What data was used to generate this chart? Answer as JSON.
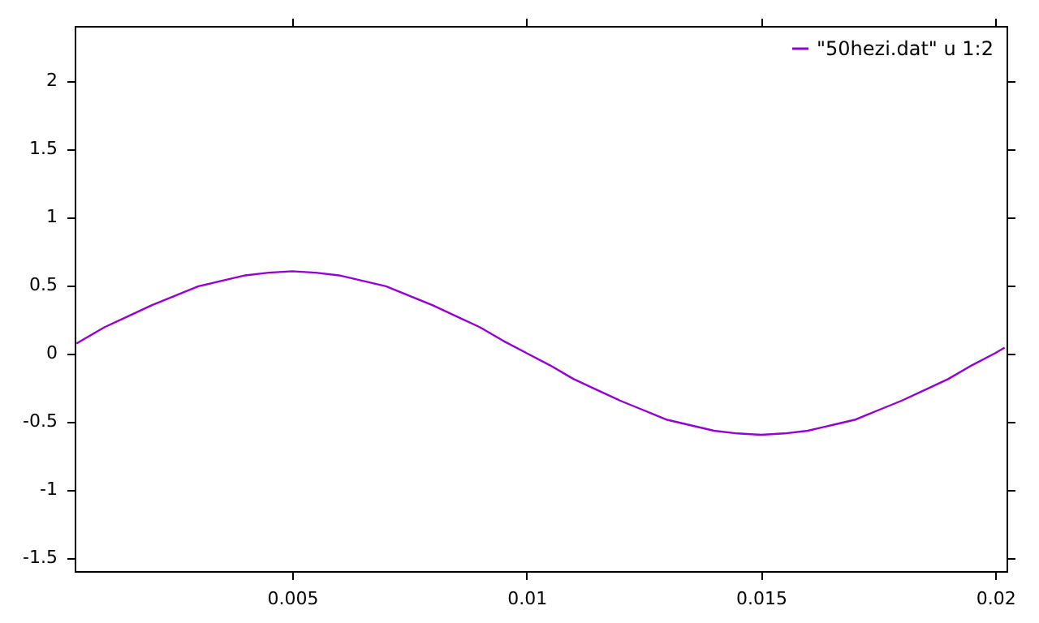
{
  "chart_data": {
    "type": "line",
    "x": [
      0.0004,
      0.0005,
      0.001,
      0.0015,
      0.002,
      0.0025,
      0.003,
      0.0035,
      0.004,
      0.0045,
      0.005,
      0.0055,
      0.006,
      0.0065,
      0.007,
      0.0075,
      0.008,
      0.0085,
      0.009,
      0.0095,
      0.01,
      0.0105,
      0.011,
      0.0115,
      0.012,
      0.0125,
      0.013,
      0.0135,
      0.014,
      0.0145,
      0.015,
      0.0155,
      0.016,
      0.0165,
      0.017,
      0.0175,
      0.018,
      0.0185,
      0.019,
      0.0195,
      0.02,
      0.0202
    ],
    "series": [
      {
        "name": "\"50hezi.dat\" u 1:2",
        "color": "#9400d3",
        "values": [
          0.07,
          0.09,
          0.19,
          0.27,
          0.35,
          0.42,
          0.49,
          0.53,
          0.57,
          0.59,
          0.6,
          0.59,
          0.57,
          0.53,
          0.49,
          0.42,
          0.35,
          0.27,
          0.19,
          0.09,
          0,
          -0.09,
          -0.19,
          -0.27,
          -0.35,
          -0.42,
          -0.49,
          -0.53,
          -0.57,
          -0.59,
          -0.6,
          -0.59,
          -0.57,
          -0.53,
          -0.49,
          -0.42,
          -0.35,
          -0.27,
          -0.19,
          -0.09,
          0,
          0.04
        ]
      }
    ],
    "xlim": [
      0.00036,
      0.02024
    ],
    "xticks": [
      0.005,
      0.01,
      0.015,
      0.02
    ],
    "ylim": [
      -1.6,
      2.4
    ],
    "yticks": [
      -1.5,
      -1,
      -0.5,
      0,
      0.5,
      1,
      1.5,
      2
    ],
    "legend": "top right",
    "grid": false,
    "marker": "none",
    "line_style": "solid"
  }
}
